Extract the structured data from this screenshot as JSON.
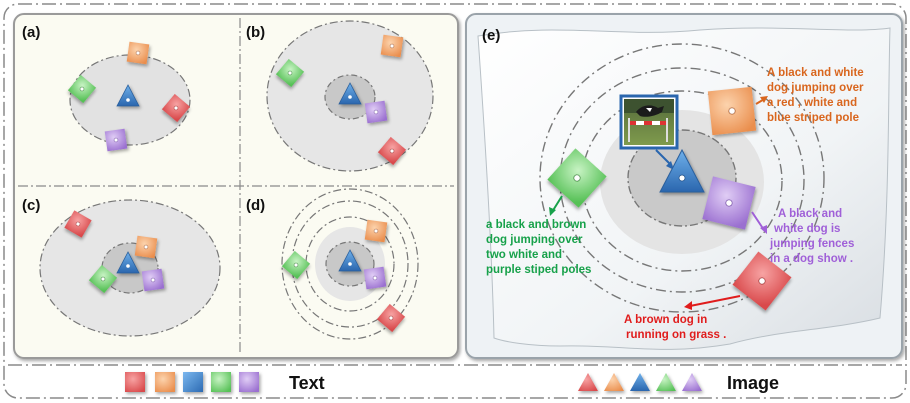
{
  "panels": {
    "a": "(a)",
    "b": "(b)",
    "c": "(c)",
    "d": "(d)",
    "e": "(e)"
  },
  "captions": {
    "orange": [
      "A black and white",
      "dog jumping over",
      "a red , white and",
      "blue striped pole"
    ],
    "green": [
      "a black and brown",
      "dog jumping over",
      "two white and",
      "purple stiped poles"
    ],
    "purple": [
      "A black and",
      "white dog is",
      "jumping fences",
      "in a dog show ."
    ],
    "red": [
      "A brown dog in",
      "running on grass ."
    ]
  },
  "legend": {
    "text_label": "Text",
    "image_label": "Image"
  },
  "colors": {
    "red": "#e8676a",
    "orange": "#f3a36f",
    "blue": "#3b7fc4",
    "green": "#7fd67c",
    "purple": "#b48fdd",
    "caption_orange": "#d9661e",
    "caption_green": "#17a14a",
    "caption_purple": "#a060d8",
    "caption_red": "#e01c1c"
  },
  "icons": {
    "text_marker": "square-marker",
    "image_marker": "triangle-marker",
    "photo": "dog-photo-thumbnail"
  }
}
